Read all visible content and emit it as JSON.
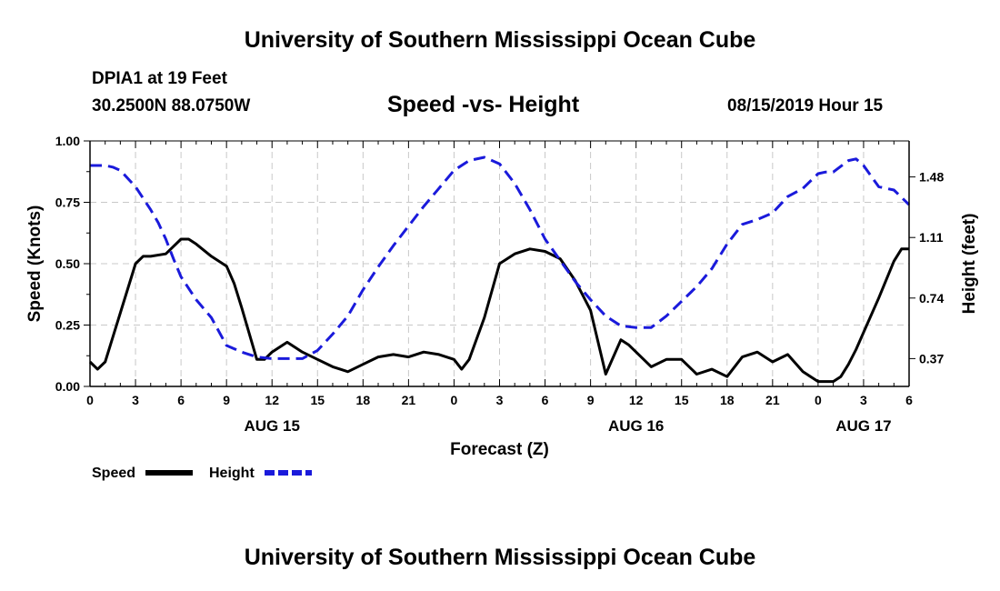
{
  "header": {
    "title": "University of Southern Mississippi Ocean Cube",
    "station": "DPIA1 at 19 Feet",
    "coords": "30.2500N 88.0750W",
    "subtitle": "Speed -vs- Height",
    "datestamp": "08/15/2019 Hour 15"
  },
  "footer": {
    "title": "University of Southern Mississippi Ocean Cube"
  },
  "chart_data": {
    "type": "line",
    "title": "Speed -vs- Height",
    "xlabel": "Forecast (Z)",
    "ylabel": "Speed (Knots)",
    "y2label": "Height (feet)",
    "xlim": [
      0,
      54
    ],
    "ylim": [
      0,
      1.0
    ],
    "y2lim": [
      0.2,
      1.7
    ],
    "grid": true,
    "x_ticks": [
      0,
      3,
      6,
      9,
      12,
      15,
      18,
      21,
      24,
      27,
      30,
      33,
      36,
      39,
      42,
      45,
      48,
      51,
      54
    ],
    "x_tick_labels": [
      "0",
      "3",
      "6",
      "9",
      "12",
      "15",
      "18",
      "21",
      "0",
      "3",
      "6",
      "9",
      "12",
      "15",
      "18",
      "21",
      "0",
      "3",
      "6"
    ],
    "day_labels": [
      {
        "x": 12,
        "label": "AUG 15"
      },
      {
        "x": 36,
        "label": "AUG 16"
      },
      {
        "x": 51,
        "label": "AUG 17"
      }
    ],
    "y_ticks": [
      0,
      0.25,
      0.5,
      0.75,
      1.0
    ],
    "y_tick_labels": [
      "0.00",
      "0.25",
      "0.50",
      "0.75",
      "1.00"
    ],
    "y2_ticks": [
      0.37,
      0.74,
      1.11,
      1.48
    ],
    "y2_tick_labels": [
      "0.37",
      "0.74",
      "1.11",
      "1.48"
    ],
    "legend": [
      {
        "name": "Speed",
        "color": "#000000",
        "dash": "solid"
      },
      {
        "name": "Height",
        "color": "#1a1adb",
        "dash": "dashed"
      }
    ],
    "series": [
      {
        "name": "Speed",
        "axis": "left",
        "color": "#000000",
        "x": [
          0,
          0.5,
          1,
          2,
          3,
          3.5,
          4,
          5,
          5.5,
          6,
          6.5,
          7,
          8,
          9,
          9.5,
          10,
          11,
          11.5,
          12,
          13,
          14,
          15,
          16,
          16.5,
          17,
          18,
          19,
          20,
          21,
          22,
          23,
          24,
          24.5,
          25,
          26,
          27,
          28,
          29,
          30,
          31,
          32,
          33,
          34,
          35,
          35.5,
          36,
          37,
          38,
          39,
          40,
          41,
          42,
          43,
          44,
          45,
          46,
          47,
          48,
          49,
          49.5,
          50,
          50.5,
          51,
          52,
          53,
          53.5,
          54
        ],
        "values": [
          0.1,
          0.07,
          0.1,
          0.3,
          0.5,
          0.53,
          0.53,
          0.54,
          0.57,
          0.6,
          0.6,
          0.58,
          0.53,
          0.49,
          0.42,
          0.32,
          0.11,
          0.11,
          0.14,
          0.18,
          0.14,
          0.11,
          0.08,
          0.07,
          0.06,
          0.09,
          0.12,
          0.13,
          0.12,
          0.14,
          0.13,
          0.11,
          0.07,
          0.11,
          0.28,
          0.5,
          0.54,
          0.56,
          0.55,
          0.52,
          0.43,
          0.31,
          0.05,
          0.19,
          0.17,
          0.14,
          0.08,
          0.11,
          0.11,
          0.05,
          0.07,
          0.04,
          0.12,
          0.14,
          0.1,
          0.13,
          0.06,
          0.02,
          0.02,
          0.04,
          0.09,
          0.15,
          0.22,
          0.36,
          0.51,
          0.56,
          0.56
        ]
      },
      {
        "name": "Height",
        "axis": "right",
        "color": "#1a1adb",
        "x": [
          0,
          1,
          1.5,
          2,
          3,
          4,
          4.5,
          5,
          5.5,
          6,
          7,
          8,
          9,
          10,
          11,
          12,
          13,
          14,
          15,
          16,
          17,
          18,
          19,
          20,
          21,
          22,
          23,
          24,
          25,
          26,
          27,
          28,
          29,
          30,
          31,
          32,
          33,
          34,
          35,
          36,
          36.5,
          37,
          38,
          39,
          40,
          41,
          42,
          43,
          44,
          45,
          46,
          47,
          48,
          48.5,
          49,
          50,
          50.5,
          51,
          52,
          53,
          54
        ],
        "values": [
          1.55,
          1.55,
          1.54,
          1.52,
          1.42,
          1.28,
          1.2,
          1.1,
          0.98,
          0.87,
          0.73,
          0.62,
          0.45,
          0.41,
          0.38,
          0.37,
          0.37,
          0.37,
          0.42,
          0.52,
          0.63,
          0.79,
          0.93,
          1.06,
          1.18,
          1.3,
          1.41,
          1.52,
          1.58,
          1.6,
          1.56,
          1.44,
          1.28,
          1.1,
          0.97,
          0.84,
          0.73,
          0.63,
          0.57,
          0.56,
          0.56,
          0.56,
          0.63,
          0.72,
          0.81,
          0.92,
          1.07,
          1.19,
          1.22,
          1.26,
          1.36,
          1.41,
          1.5,
          1.51,
          1.51,
          1.58,
          1.59,
          1.55,
          1.42,
          1.4,
          1.31
        ]
      }
    ]
  }
}
